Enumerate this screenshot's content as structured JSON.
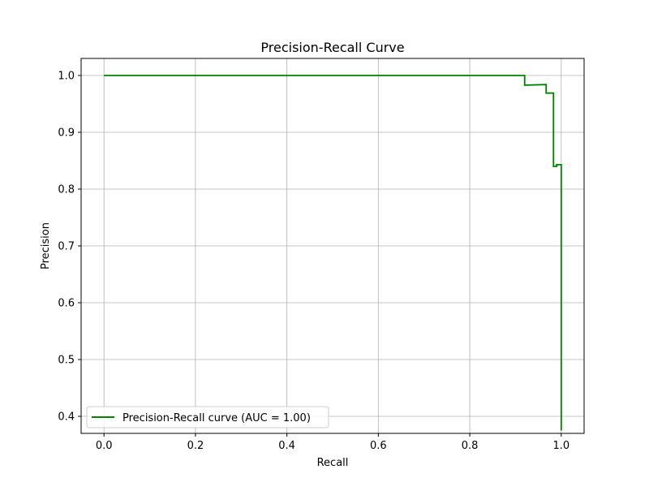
{
  "chart_data": {
    "type": "line",
    "title": "Precision-Recall Curve",
    "xlabel": "Recall",
    "ylabel": "Precision",
    "xlim": [
      -0.05,
      1.05
    ],
    "ylim": [
      0.37,
      1.03
    ],
    "x_ticks": [
      0.0,
      0.2,
      0.4,
      0.6,
      0.8,
      1.0
    ],
    "y_ticks": [
      0.4,
      0.5,
      0.6,
      0.7,
      0.8,
      0.9,
      1.0
    ],
    "x_tick_labels": [
      "0.0",
      "0.2",
      "0.4",
      "0.6",
      "0.8",
      "1.0"
    ],
    "y_tick_labels": [
      "0.4",
      "0.5",
      "0.6",
      "0.7",
      "0.8",
      "0.9",
      "1.0"
    ],
    "grid": true,
    "legend_position": "lower-left",
    "series": [
      {
        "name": "Precision-Recall curve (AUC = 1.00)",
        "color": "#008000",
        "step": true,
        "points": [
          [
            0.0,
            1.0
          ],
          [
            0.92,
            1.0
          ],
          [
            0.92,
            0.983
          ],
          [
            0.967,
            0.984
          ],
          [
            0.967,
            0.969
          ],
          [
            0.983,
            0.969
          ],
          [
            0.983,
            0.84
          ],
          [
            0.99,
            0.84
          ],
          [
            0.99,
            0.843
          ],
          [
            1.0,
            0.843
          ],
          [
            1.0,
            0.375
          ]
        ]
      }
    ]
  }
}
